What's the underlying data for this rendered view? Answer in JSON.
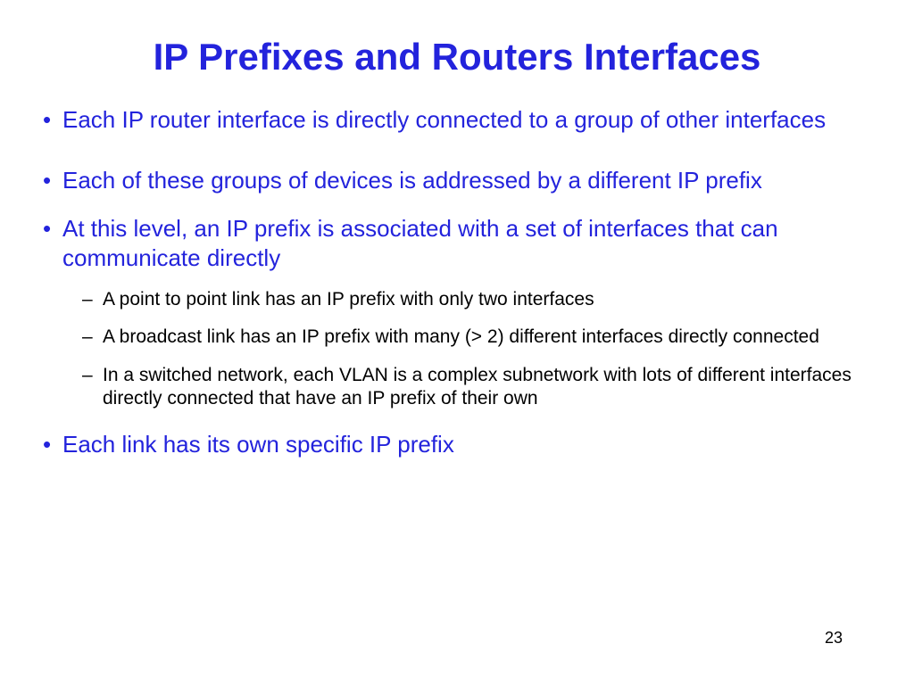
{
  "title": "IP Prefixes and Routers Interfaces",
  "bullets": {
    "b0": "Each IP router interface is directly connected to a group of other interfaces",
    "b1": "Each of these groups of devices is addressed by a different IP prefix",
    "b2": "At this level, an IP prefix is associated with a set of interfaces that can communicate directly",
    "b3": "Each link has its own specific IP prefix"
  },
  "sub_bullets": {
    "s0": "A point to point link has an IP prefix with only two interfaces",
    "s1": "A broadcast link has an IP prefix with many (> 2) different interfaces directly connected",
    "s2": "In a switched network, each VLAN is a complex subnetwork with lots of different interfaces directly connected that have an IP prefix of their own"
  },
  "page_number": "23",
  "colors": {
    "heading_blue": "#2323dc",
    "text_black": "#000000",
    "background": "#ffffff"
  },
  "typography": {
    "title_fontsize": 42,
    "bullet_fontsize": 26,
    "sub_bullet_fontsize": 21,
    "page_number_fontsize": 18,
    "font_family": "Comic Sans MS"
  }
}
